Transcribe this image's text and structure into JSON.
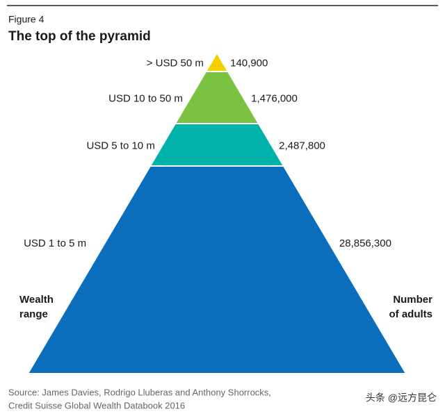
{
  "chart_data": {
    "type": "pyramid",
    "figure_label": "Figure 4",
    "title": "The top of the pyramid",
    "categories": [
      "> USD 50 m",
      "USD 10 to 50 m",
      "USD 5 to 10 m",
      "USD 1 to 5 m"
    ],
    "values": [
      140900,
      1476000,
      2487800,
      28856300
    ],
    "value_labels": [
      "140,900",
      "1,476,000",
      "2,487,800",
      "28,856,300"
    ],
    "colors": [
      "#f5d000",
      "#7cc242",
      "#00b2a9",
      "#0a6ebd"
    ],
    "left_axis_label": [
      "Wealth",
      "range"
    ],
    "right_axis_label": [
      "Number",
      "of adults"
    ],
    "source": [
      "Source: James Davies, Rodrigo Lluberas and Anthony Shorrocks,",
      "Credit Suisse Global Wealth Databook 2016"
    ],
    "watermark": "头条 @远方昆仑"
  }
}
